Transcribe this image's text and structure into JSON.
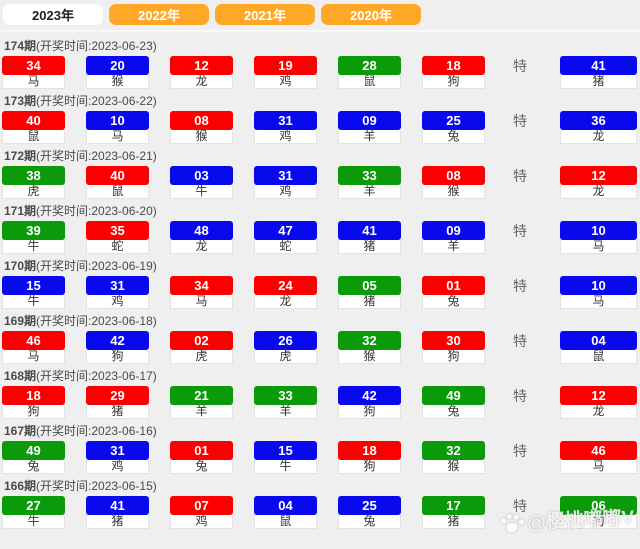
{
  "colors": {
    "red": "#fb0000",
    "blue": "#0909ee",
    "green": "#0a9a0a",
    "tab_orange": "#ffa726",
    "page_bg": "#efefef"
  },
  "tabs": [
    {
      "label": "2023年",
      "active": true
    },
    {
      "label": "2022年",
      "active": false
    },
    {
      "label": "2021年",
      "active": false
    },
    {
      "label": "2020年",
      "active": false
    }
  ],
  "labels": {
    "special": "特"
  },
  "watermark": {
    "icon": "paw-icon",
    "text": "@樱桃嘟嘟V"
  },
  "draws": [
    {
      "period": "174期",
      "time": "(开奖时间:2023-06-23)",
      "numbers": [
        {
          "num": "34",
          "color": "red",
          "zodiac": "马"
        },
        {
          "num": "20",
          "color": "blue",
          "zodiac": "猴"
        },
        {
          "num": "12",
          "color": "red",
          "zodiac": "龙"
        },
        {
          "num": "19",
          "color": "red",
          "zodiac": "鸡"
        },
        {
          "num": "28",
          "color": "green",
          "zodiac": "鼠"
        },
        {
          "num": "18",
          "color": "red",
          "zodiac": "狗"
        }
      ],
      "special": {
        "num": "41",
        "color": "blue",
        "zodiac": "猪"
      }
    },
    {
      "period": "173期",
      "time": "(开奖时间:2023-06-22)",
      "numbers": [
        {
          "num": "40",
          "color": "red",
          "zodiac": "鼠"
        },
        {
          "num": "10",
          "color": "blue",
          "zodiac": "马"
        },
        {
          "num": "08",
          "color": "red",
          "zodiac": "猴"
        },
        {
          "num": "31",
          "color": "blue",
          "zodiac": "鸡"
        },
        {
          "num": "09",
          "color": "blue",
          "zodiac": "羊"
        },
        {
          "num": "25",
          "color": "blue",
          "zodiac": "兔"
        }
      ],
      "special": {
        "num": "36",
        "color": "blue",
        "zodiac": "龙"
      }
    },
    {
      "period": "172期",
      "time": "(开奖时间:2023-06-21)",
      "numbers": [
        {
          "num": "38",
          "color": "green",
          "zodiac": "虎"
        },
        {
          "num": "40",
          "color": "red",
          "zodiac": "鼠"
        },
        {
          "num": "03",
          "color": "blue",
          "zodiac": "牛"
        },
        {
          "num": "31",
          "color": "blue",
          "zodiac": "鸡"
        },
        {
          "num": "33",
          "color": "green",
          "zodiac": "羊"
        },
        {
          "num": "08",
          "color": "red",
          "zodiac": "猴"
        }
      ],
      "special": {
        "num": "12",
        "color": "red",
        "zodiac": "龙"
      }
    },
    {
      "period": "171期",
      "time": "(开奖时间:2023-06-20)",
      "numbers": [
        {
          "num": "39",
          "color": "green",
          "zodiac": "牛"
        },
        {
          "num": "35",
          "color": "red",
          "zodiac": "蛇"
        },
        {
          "num": "48",
          "color": "blue",
          "zodiac": "龙"
        },
        {
          "num": "47",
          "color": "blue",
          "zodiac": "蛇"
        },
        {
          "num": "41",
          "color": "blue",
          "zodiac": "猪"
        },
        {
          "num": "09",
          "color": "blue",
          "zodiac": "羊"
        }
      ],
      "special": {
        "num": "10",
        "color": "blue",
        "zodiac": "马"
      }
    },
    {
      "period": "170期",
      "time": "(开奖时间:2023-06-19)",
      "numbers": [
        {
          "num": "15",
          "color": "blue",
          "zodiac": "牛"
        },
        {
          "num": "31",
          "color": "blue",
          "zodiac": "鸡"
        },
        {
          "num": "34",
          "color": "red",
          "zodiac": "马"
        },
        {
          "num": "24",
          "color": "red",
          "zodiac": "龙"
        },
        {
          "num": "05",
          "color": "green",
          "zodiac": "猪"
        },
        {
          "num": "01",
          "color": "red",
          "zodiac": "兔"
        }
      ],
      "special": {
        "num": "10",
        "color": "blue",
        "zodiac": "马"
      }
    },
    {
      "period": "169期",
      "time": "(开奖时间:2023-06-18)",
      "numbers": [
        {
          "num": "46",
          "color": "red",
          "zodiac": "马"
        },
        {
          "num": "42",
          "color": "blue",
          "zodiac": "狗"
        },
        {
          "num": "02",
          "color": "red",
          "zodiac": "虎"
        },
        {
          "num": "26",
          "color": "blue",
          "zodiac": "虎"
        },
        {
          "num": "32",
          "color": "green",
          "zodiac": "猴"
        },
        {
          "num": "30",
          "color": "red",
          "zodiac": "狗"
        }
      ],
      "special": {
        "num": "04",
        "color": "blue",
        "zodiac": "鼠"
      }
    },
    {
      "period": "168期",
      "time": "(开奖时间:2023-06-17)",
      "numbers": [
        {
          "num": "18",
          "color": "red",
          "zodiac": "狗"
        },
        {
          "num": "29",
          "color": "red",
          "zodiac": "猪"
        },
        {
          "num": "21",
          "color": "green",
          "zodiac": "羊"
        },
        {
          "num": "33",
          "color": "green",
          "zodiac": "羊"
        },
        {
          "num": "42",
          "color": "blue",
          "zodiac": "狗"
        },
        {
          "num": "49",
          "color": "green",
          "zodiac": "兔"
        }
      ],
      "special": {
        "num": "12",
        "color": "red",
        "zodiac": "龙"
      }
    },
    {
      "period": "167期",
      "time": "(开奖时间:2023-06-16)",
      "numbers": [
        {
          "num": "49",
          "color": "green",
          "zodiac": "兔"
        },
        {
          "num": "31",
          "color": "blue",
          "zodiac": "鸡"
        },
        {
          "num": "01",
          "color": "red",
          "zodiac": "兔"
        },
        {
          "num": "15",
          "color": "blue",
          "zodiac": "牛"
        },
        {
          "num": "18",
          "color": "red",
          "zodiac": "狗"
        },
        {
          "num": "32",
          "color": "green",
          "zodiac": "猴"
        }
      ],
      "special": {
        "num": "46",
        "color": "red",
        "zodiac": "马"
      }
    },
    {
      "period": "166期",
      "time": "(开奖时间:2023-06-15)",
      "numbers": [
        {
          "num": "27",
          "color": "green",
          "zodiac": "牛"
        },
        {
          "num": "41",
          "color": "blue",
          "zodiac": "猪"
        },
        {
          "num": "07",
          "color": "red",
          "zodiac": "鸡"
        },
        {
          "num": "04",
          "color": "blue",
          "zodiac": "鼠"
        },
        {
          "num": "25",
          "color": "blue",
          "zodiac": "兔"
        },
        {
          "num": "17",
          "color": "green",
          "zodiac": "猪"
        }
      ],
      "special": {
        "num": "06",
        "color": "green",
        "zodiac": "狗"
      }
    }
  ]
}
